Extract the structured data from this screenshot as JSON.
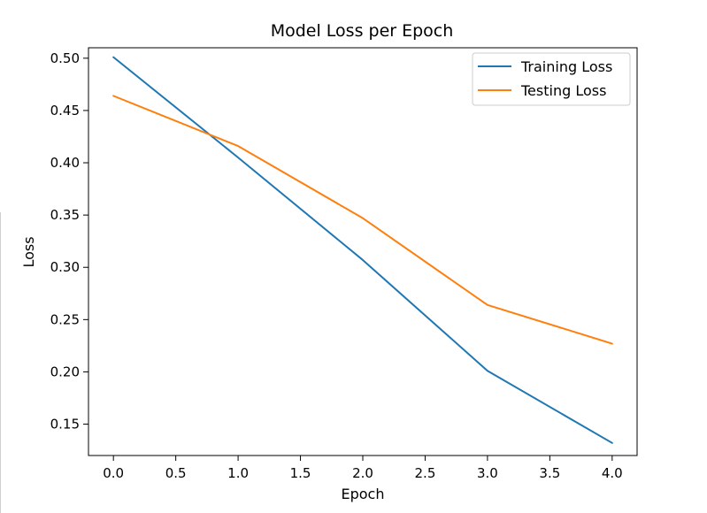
{
  "chart_data": {
    "type": "line",
    "title": "Model Loss per Epoch",
    "xlabel": "Epoch",
    "ylabel": "Loss",
    "xlim": [
      -0.2,
      4.2
    ],
    "ylim": [
      0.12,
      0.51
    ],
    "xticks": [
      0.0,
      0.5,
      1.0,
      1.5,
      2.0,
      2.5,
      3.0,
      3.5,
      4.0
    ],
    "xtick_labels": [
      "0.0",
      "0.5",
      "1.0",
      "1.5",
      "2.0",
      "2.5",
      "3.0",
      "3.5",
      "4.0"
    ],
    "yticks": [
      0.15,
      0.2,
      0.25,
      0.3,
      0.35,
      0.4,
      0.45,
      0.5
    ],
    "ytick_labels": [
      "0.15",
      "0.20",
      "0.25",
      "0.30",
      "0.35",
      "0.40",
      "0.45",
      "0.50"
    ],
    "grid": false,
    "legend_position": "top-right",
    "x": [
      0,
      1,
      2,
      3,
      4
    ],
    "series": [
      {
        "name": "Training Loss",
        "color": "#1f77b4",
        "values": [
          0.501,
          0.405,
          0.307,
          0.201,
          0.132
        ]
      },
      {
        "name": "Testing Loss",
        "color": "#ff7f0e",
        "values": [
          0.464,
          0.416,
          0.347,
          0.264,
          0.227
        ]
      }
    ]
  }
}
